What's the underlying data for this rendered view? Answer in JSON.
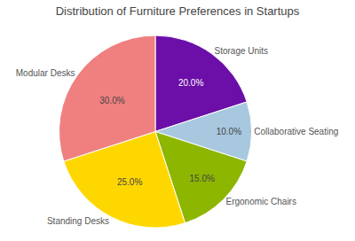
{
  "chart_data": {
    "type": "pie",
    "title": "Distribution of Furniture Preferences in Startups",
    "categories": [
      "Storage Units",
      "Collaborative Seating",
      "Ergonomic Chairs",
      "Standing Desks",
      "Modular Desks"
    ],
    "values": [
      20.0,
      10.0,
      15.0,
      25.0,
      30.0
    ],
    "value_labels": [
      "20.0%",
      "10.0%",
      "15.0%",
      "25.0%",
      "30.0%"
    ],
    "colors": [
      "#6b0fa8",
      "#a8c8e0",
      "#8db600",
      "#ffd700",
      "#f08080"
    ],
    "data_labels": true
  }
}
